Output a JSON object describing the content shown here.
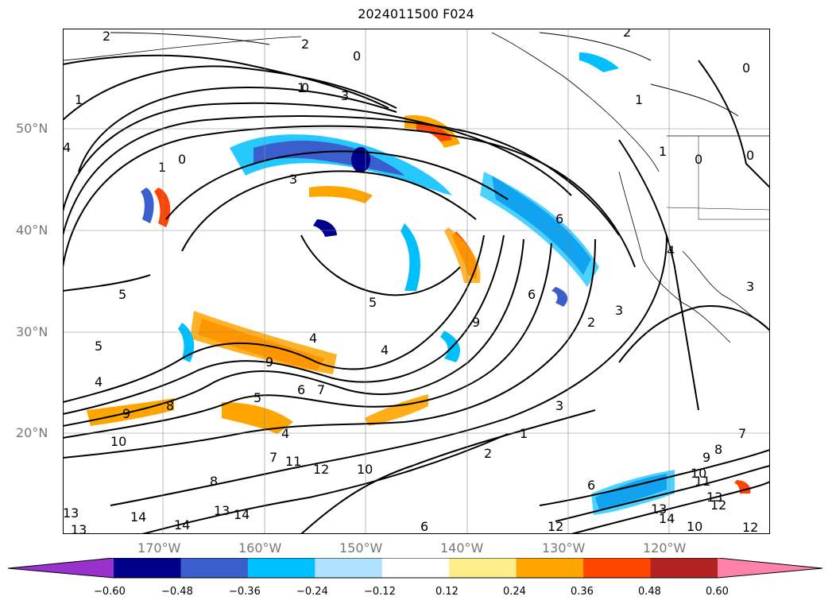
{
  "title": "2024011500 F024",
  "map": {
    "lat_labels": [
      "50°N",
      "40°N",
      "30°N",
      "20°N"
    ],
    "lon_labels": [
      "170°W",
      "160°W",
      "150°W",
      "140°W",
      "130°W",
      "120°W"
    ],
    "contour_labels": [
      "2",
      "2",
      "0",
      "1",
      "1",
      "0",
      "3",
      "1",
      "2",
      "0",
      "3",
      "1",
      "0",
      "1",
      "0",
      "0",
      "4",
      "3",
      "6",
      "6",
      "4",
      "5",
      "5",
      "5",
      "4",
      "4",
      "7",
      "9",
      "8",
      "6",
      "9",
      "9",
      "4",
      "10",
      "11",
      "12",
      "8",
      "10",
      "12",
      "13",
      "14",
      "14",
      "13",
      "13",
      "6",
      "7",
      "8",
      "9",
      "10",
      "11",
      "12",
      "13",
      "14",
      "10",
      "12",
      "13",
      "14",
      "6",
      "3",
      "2",
      "1",
      "2",
      "3",
      "4",
      "5",
      "7"
    ]
  },
  "colorbar": {
    "ticks": [
      "−0.60",
      "−0.48",
      "−0.36",
      "−0.24",
      "−0.12",
      "0.12",
      "0.24",
      "0.36",
      "0.48",
      "0.60"
    ],
    "colors": [
      "#9932cc",
      "#00008b",
      "#3a5fcd",
      "#00bfff",
      "#b0e2ff",
      "#ffffff",
      "#ffec8b",
      "#ffa500",
      "#ff4500",
      "#b22222",
      "#ff82ab"
    ]
  }
}
